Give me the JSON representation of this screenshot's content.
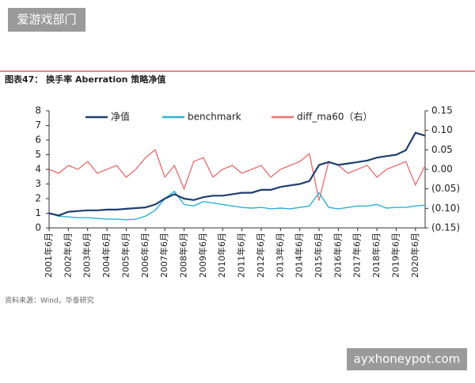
{
  "watermarks": {
    "top": "爱游戏部门",
    "bottom": "ayxhoneypot.com"
  },
  "chart_data": {
    "type": "line",
    "title": "图表47： 换手率 Aberration 策略净值",
    "source": "资料来源：Wind，华泰研究",
    "legend": "top",
    "categories": [
      "2001年6月",
      null,
      "2002年6月",
      null,
      "2003年6月",
      null,
      "2004年6月",
      null,
      "2005年6月",
      null,
      "2006年6月",
      null,
      "2007年6月",
      null,
      "2008年6月",
      null,
      "2009年6月",
      null,
      "2010年6月",
      null,
      "2011年6月",
      null,
      "2012年6月",
      null,
      "2013年6月",
      null,
      "2014年6月",
      null,
      "2015年6月",
      null,
      "2016年6月",
      null,
      "2017年6月",
      null,
      "2018年6月",
      null,
      "2019年6月",
      null,
      "2020年6月",
      null
    ],
    "ylim": [
      0,
      8
    ],
    "yticks": [
      0,
      1,
      2,
      3,
      4,
      5,
      6,
      7,
      8
    ],
    "y2lim": [
      -0.15,
      0.15
    ],
    "y2ticks": [
      {
        "value": -0.15,
        "label": "(0.15)"
      },
      {
        "value": -0.1,
        "label": "(0.10)"
      },
      {
        "value": -0.05,
        "label": "(0.05)"
      },
      {
        "value": 0,
        "label": "0.00"
      },
      0.05,
      {
        "value": 0.1,
        "label": "0.10"
      },
      0.15
    ],
    "series": [
      {
        "name": "净值",
        "color": "#1f3f6e",
        "values": [
          1.0,
          0.85,
          1.1,
          1.15,
          1.2,
          1.2,
          1.25,
          1.25,
          1.3,
          1.35,
          1.4,
          1.6,
          2.0,
          2.3,
          2.0,
          1.9,
          2.1,
          2.2,
          2.2,
          2.3,
          2.4,
          2.4,
          2.6,
          2.6,
          2.8,
          2.9,
          3.0,
          3.2,
          4.3,
          4.5,
          4.3,
          4.4,
          4.5,
          4.6,
          4.8,
          4.9,
          5.0,
          5.3,
          6.5,
          6.3
        ]
      },
      {
        "name": "benchmark",
        "color": "#2bb0d8",
        "values": [
          1.0,
          0.8,
          0.75,
          0.7,
          0.7,
          0.65,
          0.6,
          0.6,
          0.55,
          0.6,
          0.8,
          1.2,
          2.0,
          2.5,
          1.6,
          1.5,
          1.8,
          1.7,
          1.6,
          1.5,
          1.4,
          1.35,
          1.4,
          1.3,
          1.35,
          1.3,
          1.4,
          1.5,
          2.4,
          1.4,
          1.3,
          1.4,
          1.5,
          1.5,
          1.6,
          1.35,
          1.4,
          1.4,
          1.5,
          1.55
        ]
      },
      {
        "name": "diff_ma60（右）",
        "color": "#f07070",
        "axis": "y2",
        "values": [
          0.0,
          -0.01,
          0.01,
          0.0,
          0.02,
          -0.01,
          0.0,
          0.01,
          -0.02,
          0.0,
          0.03,
          0.05,
          -0.02,
          0.01,
          -0.05,
          0.02,
          0.03,
          -0.02,
          0.0,
          0.01,
          -0.01,
          0.0,
          0.01,
          -0.02,
          0.0,
          0.01,
          0.02,
          0.04,
          -0.08,
          0.02,
          0.01,
          -0.01,
          0.0,
          0.01,
          -0.02,
          0.0,
          0.01,
          0.02,
          -0.04,
          0.01
        ]
      }
    ]
  }
}
